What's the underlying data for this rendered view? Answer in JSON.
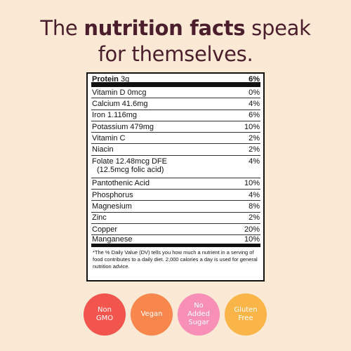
{
  "headline": {
    "line1_pre": "The ",
    "line1_bold": "nutrition facts",
    "line1_post": " speak",
    "line2": "for themselves."
  },
  "nutrition": {
    "protein": {
      "name": "Protein",
      "amount": "3g",
      "dv": "6%"
    },
    "rows": [
      {
        "name": "Vitamin D 0mcg",
        "dv": "0%"
      },
      {
        "name": "Calcium 41.6mg",
        "dv": "4%"
      },
      {
        "name": "Iron 1.116mg",
        "dv": "6%"
      },
      {
        "name": "Potassium 479mg",
        "dv": "10%"
      },
      {
        "name": "Vitamin C",
        "dv": "2%"
      },
      {
        "name": "Niacin",
        "dv": "2%"
      },
      {
        "name": "Folate 12.48mcg DFE",
        "sub": "(12.5mcg folic acid)",
        "dv": "4%"
      },
      {
        "name": "Pantothenic Acid",
        "dv": "10%"
      },
      {
        "name": "Phosphorus",
        "dv": "4%"
      },
      {
        "name": "Magnesium",
        "dv": "8%"
      },
      {
        "name": "Zinc",
        "dv": "2%"
      },
      {
        "name": "Copper",
        "dv": "20%"
      },
      {
        "name": "Manganese",
        "dv": "10%"
      }
    ],
    "footnote": "*The % Daily Value (DV) tells you how much a nutrient in a serving of food contributes to a daily diet. 2,000 calories a day is used for general nutrition advice."
  },
  "badges": [
    {
      "label": "Non\nGMO",
      "color": "#f2554e"
    },
    {
      "label": "Vegan",
      "color": "#f7874c"
    },
    {
      "label": "No\nAdded\nSugar",
      "color": "#f78fb6"
    },
    {
      "label": "Gluten\nFree",
      "color": "#f9b548"
    }
  ],
  "colors": {
    "background": "#fbe8d5",
    "headline": "#4a1e2c"
  }
}
